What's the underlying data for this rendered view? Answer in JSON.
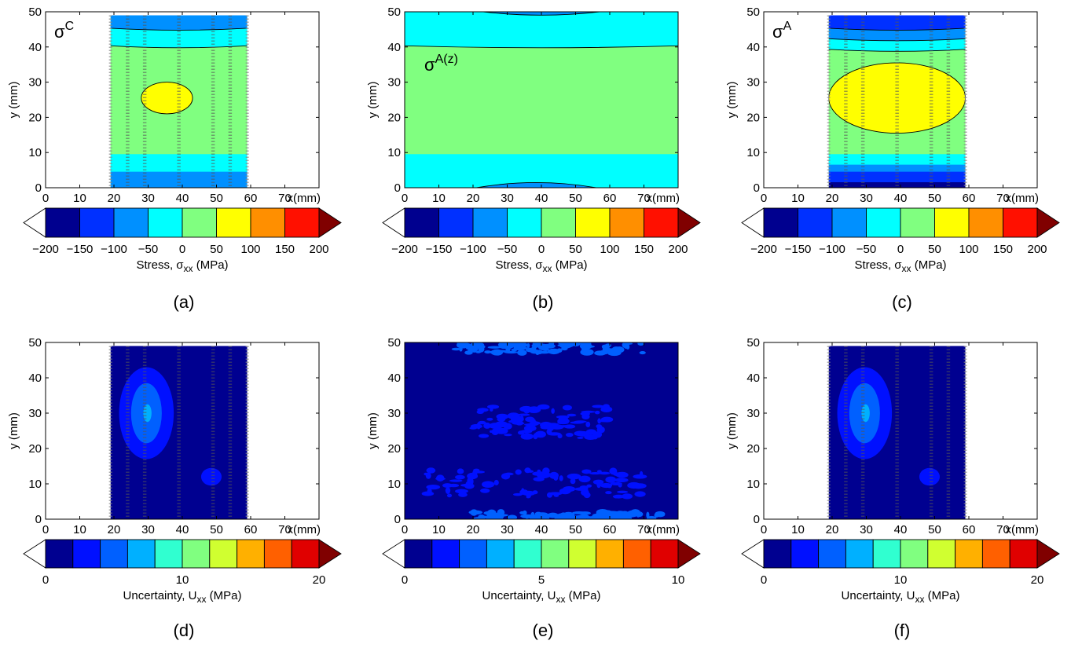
{
  "figure": {
    "panels": [
      {
        "id": "a",
        "label": "(a)",
        "annotation": "σ",
        "annotation_sup": "C",
        "ylabel": "y (mm)",
        "xunit": "x(mm)",
        "colorbar_label": "Stress, σ",
        "colorbar_sub": "xx",
        "colorbar_unit": " (MPa)"
      },
      {
        "id": "b",
        "label": "(b)",
        "annotation": "σ",
        "annotation_sup": "A(z)",
        "ylabel": "y (mm)",
        "xunit": "x(mm)",
        "colorbar_label": "Stress, σ",
        "colorbar_sub": "xx",
        "colorbar_unit": " (MPa)"
      },
      {
        "id": "c",
        "label": "(c)",
        "annotation": "σ",
        "annotation_sup": "A",
        "ylabel": "y (mm)",
        "xunit": "x(mm)",
        "colorbar_label": "Stress, σ",
        "colorbar_sub": "xx",
        "colorbar_unit": " (MPa)"
      },
      {
        "id": "d",
        "label": "(d)",
        "annotation": "",
        "annotation_sup": "",
        "ylabel": "y (mm)",
        "xunit": "x(mm)",
        "colorbar_label": "Uncertainty, U",
        "colorbar_sub": "xx",
        "colorbar_unit": " (MPa)"
      },
      {
        "id": "e",
        "label": "(e)",
        "annotation": "",
        "annotation_sup": "",
        "ylabel": "y (mm)",
        "xunit": "x(mm)",
        "colorbar_label": "Uncertainty, U",
        "colorbar_sub": "xx",
        "colorbar_unit": " (MPa)"
      },
      {
        "id": "f",
        "label": "(f)",
        "annotation": "",
        "annotation_sup": "",
        "ylabel": "y (mm)",
        "xunit": "x(mm)",
        "colorbar_label": "Uncertainty, U",
        "colorbar_sub": "xx",
        "colorbar_unit": " (MPa)"
      }
    ]
  },
  "chart_data": [
    {
      "panel": "a",
      "type": "heatmap",
      "style": "filled contour",
      "xlim": [
        0,
        80
      ],
      "ylim": [
        0,
        50
      ],
      "xticks": [
        0,
        10,
        20,
        30,
        40,
        50,
        60,
        70
      ],
      "yticks": [
        0,
        10,
        20,
        30,
        40,
        50
      ],
      "data_region_x": [
        19,
        59
      ],
      "measurement_lines_x": [
        19,
        24,
        29,
        39,
        49,
        54,
        59
      ],
      "colorbar": {
        "levels": [
          -200,
          -150,
          -100,
          -50,
          0,
          50,
          100,
          150,
          200
        ],
        "tick_labels": [
          "−200",
          "−150",
          "−100",
          "−50",
          "0",
          "50",
          "100",
          "150",
          "200"
        ],
        "colors": [
          "#00008f",
          "#0030ff",
          "#0090ff",
          "#00ffff",
          "#80ff80",
          "#ffff00",
          "#ff8f00",
          "#ff1000",
          "#800000"
        ],
        "extend": "both"
      },
      "bands": [
        {
          "y": [
            0,
            5
          ],
          "level": "-100 to -50"
        },
        {
          "y": [
            5,
            10
          ],
          "level": "-50 to 0"
        },
        {
          "y": [
            10,
            41
          ],
          "level": "0 to 50"
        },
        {
          "y": [
            41,
            46
          ],
          "level": "-50 to 0"
        },
        {
          "y": [
            46,
            49
          ],
          "level": "-100 to -50"
        }
      ],
      "regions": [
        {
          "shape": "ellipse",
          "center": [
            35.5,
            25.5
          ],
          "half_width": [
            7.5,
            4.5
          ],
          "level": "50 to 100"
        }
      ]
    },
    {
      "panel": "b",
      "type": "heatmap",
      "style": "filled contour",
      "xlim": [
        0,
        80
      ],
      "ylim": [
        0,
        50
      ],
      "xticks": [
        0,
        10,
        20,
        30,
        40,
        50,
        60,
        70
      ],
      "yticks": [
        0,
        10,
        20,
        30,
        40,
        50
      ],
      "data_region_x": [
        0,
        80
      ],
      "colorbar": {
        "levels": [
          -200,
          -150,
          -100,
          -50,
          0,
          50,
          100,
          150,
          200
        ],
        "tick_labels": [
          "−200",
          "−150",
          "−100",
          "−50",
          "0",
          "50",
          "100",
          "150",
          "200"
        ],
        "colors": [
          "#00008f",
          "#0030ff",
          "#0090ff",
          "#00ffff",
          "#80ff80",
          "#ffff00",
          "#ff8f00",
          "#ff1000",
          "#800000"
        ],
        "extend": "both"
      },
      "bands": [
        {
          "y": [
            0,
            10
          ],
          "level": "-50 to 0"
        },
        {
          "y": [
            10,
            41
          ],
          "level": "0 to 50"
        },
        {
          "y": [
            41,
            50
          ],
          "level": "-50 to 0"
        }
      ],
      "regions": [
        {
          "shape": "cap",
          "y": [
            0,
            1.8
          ],
          "x": [
            21,
            56
          ],
          "level": "-100 to -50"
        },
        {
          "shape": "cap",
          "y": [
            49.2,
            50
          ],
          "x": [
            23,
            57
          ],
          "level": "-100 to -50"
        }
      ]
    },
    {
      "panel": "c",
      "type": "heatmap",
      "style": "filled contour",
      "xlim": [
        0,
        80
      ],
      "ylim": [
        0,
        50
      ],
      "xticks": [
        0,
        10,
        20,
        30,
        40,
        50,
        60,
        70
      ],
      "yticks": [
        0,
        10,
        20,
        30,
        40,
        50
      ],
      "data_region_x": [
        19,
        59
      ],
      "measurement_lines_x": [
        19,
        24,
        29,
        39,
        49,
        54,
        59
      ],
      "colorbar": {
        "levels": [
          -200,
          -150,
          -100,
          -50,
          0,
          50,
          100,
          150,
          200
        ],
        "tick_labels": [
          "−200",
          "−150",
          "−100",
          "−50",
          "0",
          "50",
          "100",
          "150",
          "200"
        ],
        "colors": [
          "#00008f",
          "#0030ff",
          "#0090ff",
          "#00ffff",
          "#80ff80",
          "#ffff00",
          "#ff8f00",
          "#ff1000",
          "#800000"
        ],
        "extend": "both"
      },
      "bands": [
        {
          "y": [
            0,
            2
          ],
          "level": "-200 to -150"
        },
        {
          "y": [
            2,
            5
          ],
          "level": "-150 to -100"
        },
        {
          "y": [
            5,
            7
          ],
          "level": "-100 to -50"
        },
        {
          "y": [
            7,
            10
          ],
          "level": "-50 to 0"
        },
        {
          "y": [
            10,
            40
          ],
          "level": "0 to 50"
        },
        {
          "y": [
            40,
            43
          ],
          "level": "-50 to 0"
        },
        {
          "y": [
            43,
            46
          ],
          "level": "-100 to -50"
        },
        {
          "y": [
            46,
            49
          ],
          "level": "-150 to -100"
        }
      ],
      "regions": [
        {
          "shape": "ellipse",
          "center": [
            39,
            25.5
          ],
          "half_width": [
            20,
            10
          ],
          "level": "50 to 100"
        }
      ]
    },
    {
      "panel": "d",
      "type": "heatmap",
      "style": "filled contour",
      "xlim": [
        0,
        80
      ],
      "ylim": [
        0,
        50
      ],
      "xticks": [
        0,
        10,
        20,
        30,
        40,
        50,
        60,
        70
      ],
      "yticks": [
        0,
        10,
        20,
        30,
        40,
        50
      ],
      "data_region_x": [
        19,
        59
      ],
      "measurement_lines_x": [
        19,
        24,
        29,
        39,
        49,
        54,
        59
      ],
      "colorbar": {
        "levels": [
          0,
          2,
          4,
          6,
          8,
          10,
          12,
          14,
          16,
          18,
          20
        ],
        "tick_labels": [
          "0",
          "10",
          "20"
        ],
        "tick_values": [
          0,
          10,
          20
        ],
        "colors": [
          "#000090",
          "#0010ff",
          "#0060ff",
          "#00b0ff",
          "#30ffd0",
          "#80ff80",
          "#d0ff30",
          "#ffb000",
          "#ff6000",
          "#e00000",
          "#800000"
        ],
        "extend": "both"
      },
      "regions": [
        {
          "shape": "ellipse",
          "center": [
            29.5,
            30
          ],
          "half_width": [
            8,
            13
          ],
          "level": "2 to 4"
        },
        {
          "shape": "ellipse",
          "center": [
            29.5,
            30
          ],
          "half_width": [
            4.5,
            8.5
          ],
          "level": "4 to 6"
        },
        {
          "shape": "ellipse",
          "center": [
            29.8,
            30
          ],
          "half_width": [
            1.2,
            2.5
          ],
          "level": "6 to 8"
        },
        {
          "shape": "ellipse",
          "center": [
            48.5,
            12
          ],
          "half_width": [
            3,
            2.5
          ],
          "level": "2 to 4"
        }
      ]
    },
    {
      "panel": "e",
      "type": "heatmap",
      "style": "filled contour",
      "xlim": [
        0,
        80
      ],
      "ylim": [
        0,
        50
      ],
      "xticks": [
        0,
        10,
        20,
        30,
        40,
        50,
        60,
        70
      ],
      "yticks": [
        0,
        10,
        20,
        30,
        40,
        50
      ],
      "data_region_x": [
        0,
        80
      ],
      "colorbar": {
        "levels": [
          0,
          1,
          2,
          3,
          4,
          5,
          6,
          7,
          8,
          9,
          10
        ],
        "tick_labels": [
          "0",
          "5",
          "10"
        ],
        "tick_values": [
          0,
          5,
          10
        ],
        "colors": [
          "#000090",
          "#0010ff",
          "#0060ff",
          "#00b0ff",
          "#30ffd0",
          "#80ff80",
          "#d0ff30",
          "#ffb000",
          "#ff6000",
          "#e00000",
          "#800000"
        ],
        "extend": "both"
      },
      "regions": [
        {
          "shape": "noise-band",
          "y": [
            6,
            14
          ],
          "x": [
            5,
            70
          ],
          "level": "1 to 2"
        },
        {
          "shape": "noise-band",
          "y": [
            23,
            32
          ],
          "x": [
            20,
            60
          ],
          "level": "1 to 2"
        },
        {
          "shape": "noise-band",
          "y": [
            0,
            2
          ],
          "x": [
            20,
            75
          ],
          "level": "2 to 5"
        },
        {
          "shape": "noise-band",
          "y": [
            47,
            50
          ],
          "x": [
            15,
            70
          ],
          "level": "2 to 5"
        }
      ]
    },
    {
      "panel": "f",
      "type": "heatmap",
      "style": "filled contour",
      "xlim": [
        0,
        80
      ],
      "ylim": [
        0,
        50
      ],
      "xticks": [
        0,
        10,
        20,
        30,
        40,
        50,
        60,
        70
      ],
      "yticks": [
        0,
        10,
        20,
        30,
        40,
        50
      ],
      "data_region_x": [
        19,
        59
      ],
      "measurement_lines_x": [
        19,
        24,
        29,
        39,
        49,
        54,
        59
      ],
      "colorbar": {
        "levels": [
          0,
          2,
          4,
          6,
          8,
          10,
          12,
          14,
          16,
          18,
          20
        ],
        "tick_labels": [
          "0",
          "10",
          "20"
        ],
        "tick_values": [
          0,
          10,
          20
        ],
        "colors": [
          "#000090",
          "#0010ff",
          "#0060ff",
          "#00b0ff",
          "#30ffd0",
          "#80ff80",
          "#d0ff30",
          "#ffb000",
          "#ff6000",
          "#e00000",
          "#800000"
        ],
        "extend": "both"
      },
      "regions": [
        {
          "shape": "ellipse",
          "center": [
            29.5,
            30
          ],
          "half_width": [
            8,
            13
          ],
          "level": "2 to 4"
        },
        {
          "shape": "ellipse",
          "center": [
            29.5,
            30
          ],
          "half_width": [
            4.5,
            8.5
          ],
          "level": "4 to 6"
        },
        {
          "shape": "ellipse",
          "center": [
            29.8,
            30
          ],
          "half_width": [
            1.2,
            2.5
          ],
          "level": "6 to 8"
        },
        {
          "shape": "ellipse",
          "center": [
            48.5,
            12
          ],
          "half_width": [
            3,
            2.5
          ],
          "level": "2 to 4"
        }
      ]
    }
  ]
}
